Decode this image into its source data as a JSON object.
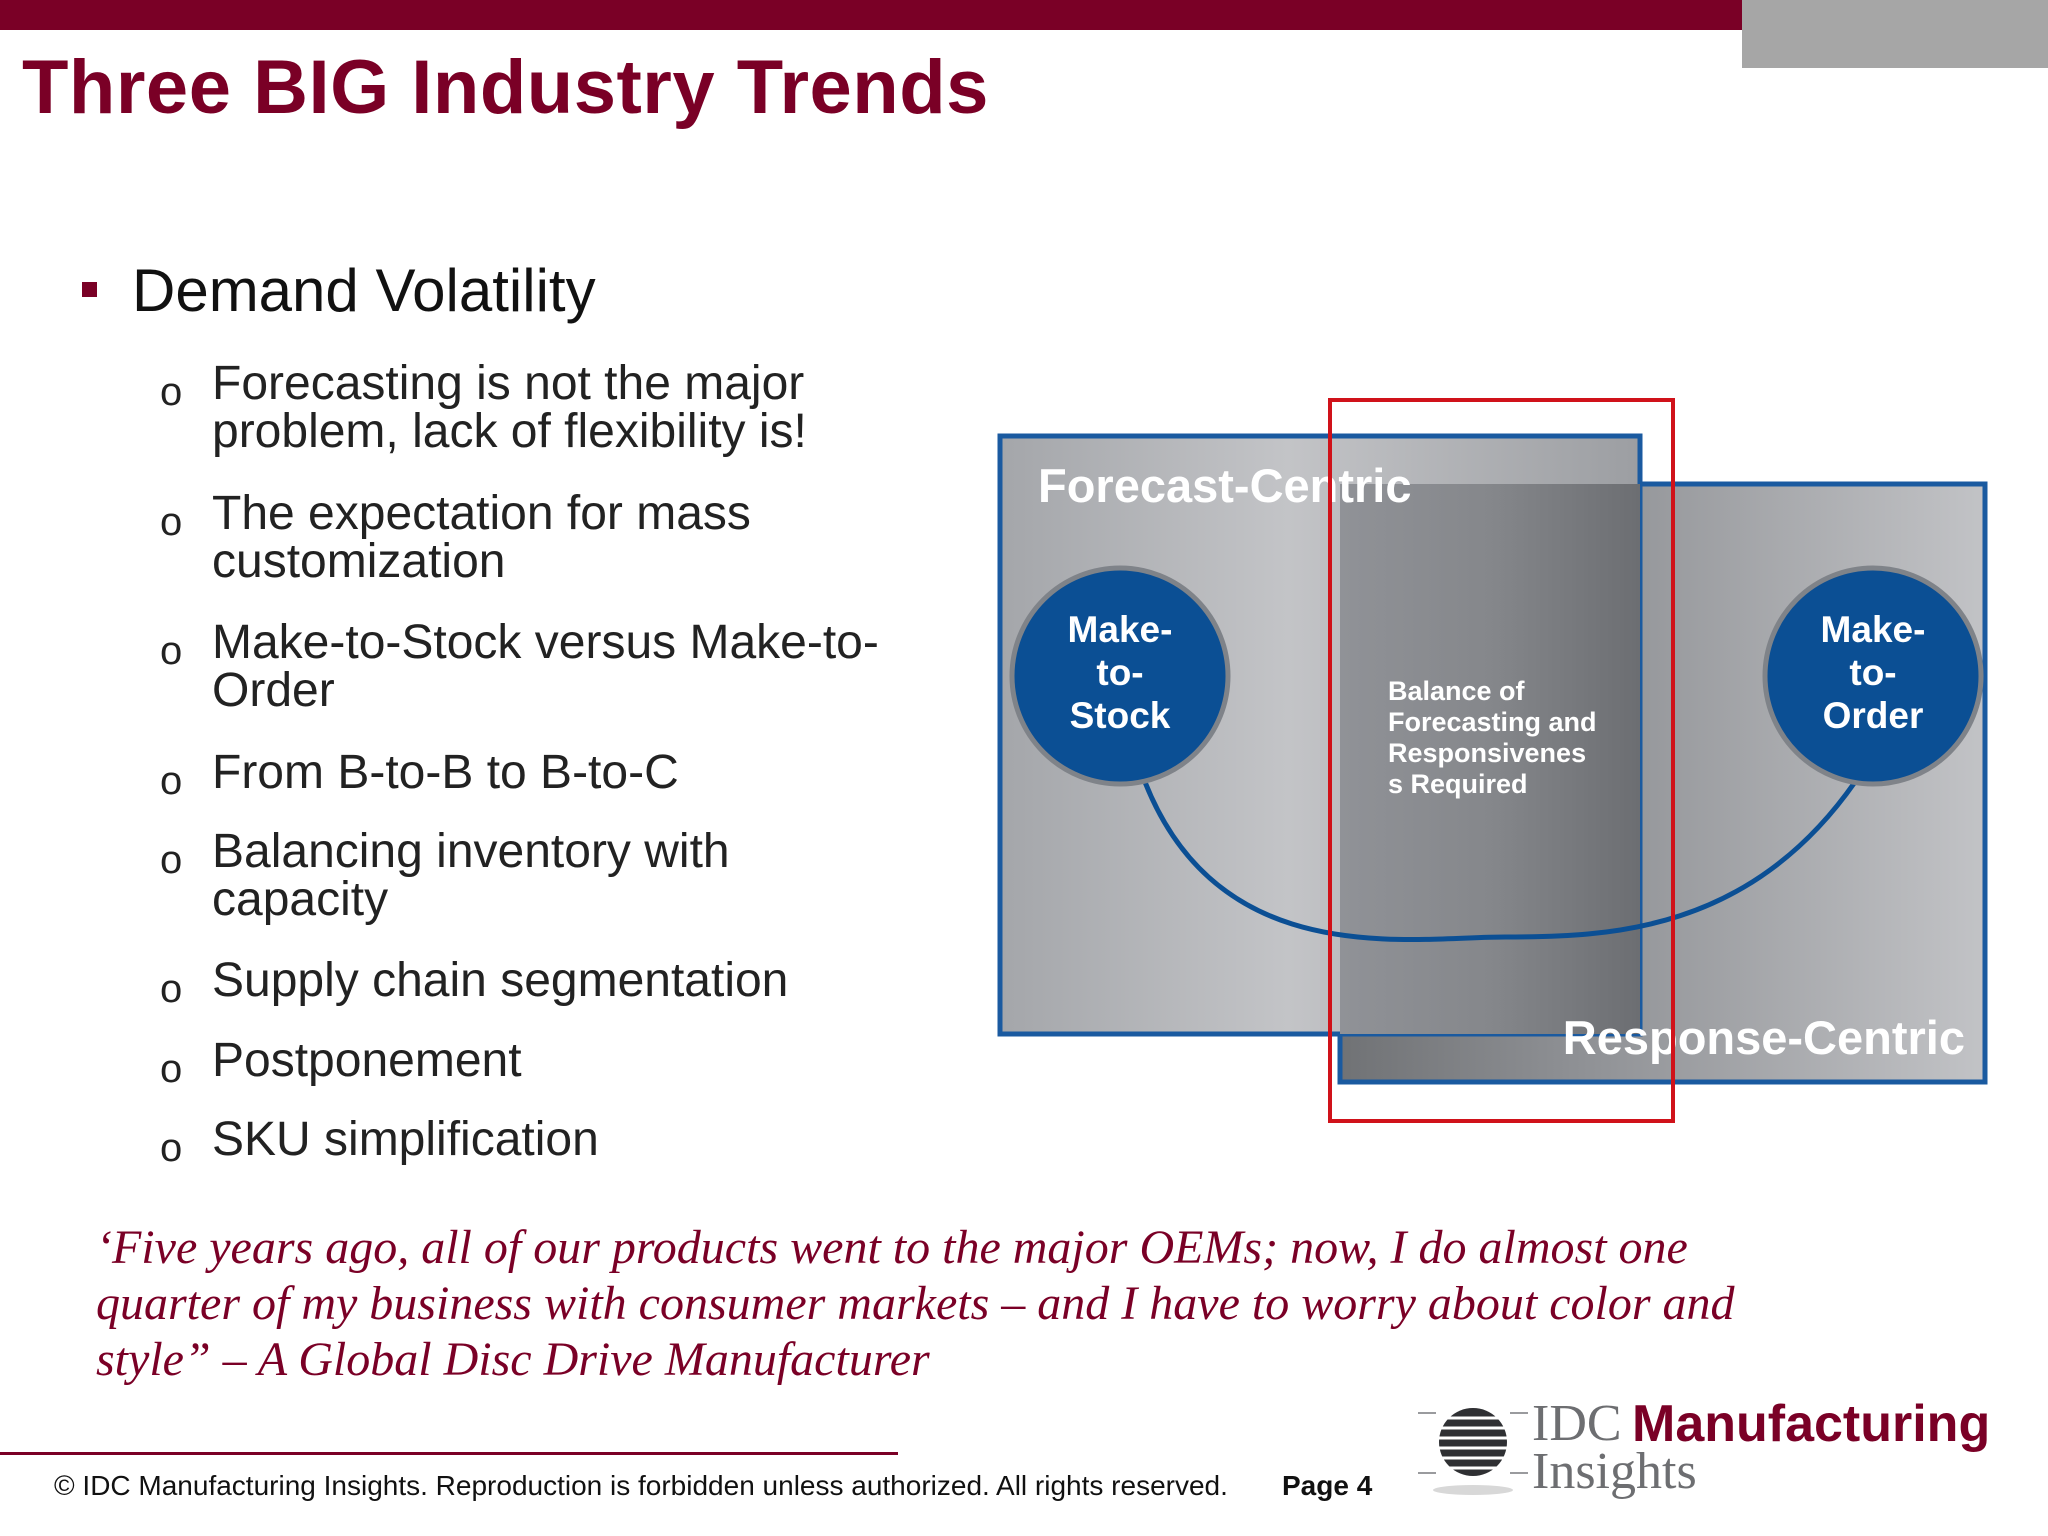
{
  "slide": {
    "title": "Three BIG Industry Trends",
    "main_bullet": "Demand Volatility",
    "sub_bullets": [
      {
        "marker": "o",
        "line1": "Forecasting is not the major",
        "line2": "problem, lack of flexibility is!"
      },
      {
        "marker": "o",
        "line1": "The expectation for mass",
        "line2": "customization"
      },
      {
        "marker": "o",
        "line1": "Make-to-Stock versus Make-to-",
        "line2": "Order"
      },
      {
        "marker": "o",
        "line1": "From B-to-B to B-to-C",
        "line2": ""
      },
      {
        "marker": "o",
        "line1": "Balancing inventory with",
        "line2": "capacity"
      },
      {
        "marker": "o",
        "line1": "Supply chain segmentation",
        "line2": ""
      },
      {
        "marker": "o",
        "line1": "Postponement",
        "line2": ""
      },
      {
        "marker": "o",
        "line1": "SKU simplification",
        "line2": ""
      }
    ],
    "quote_lines": [
      "‘Five years ago, all of our products went to the major OEMs; now, I do almost one",
      "quarter of my business with consumer markets – and I have to worry about color and",
      "style” – A Global Disc Drive Manufacturer"
    ]
  },
  "diagram": {
    "forecast_label": "Forecast-Centric",
    "response_label": "Response-Centric",
    "left_circle": [
      "Make-",
      "to-",
      "Stock"
    ],
    "right_circle": [
      "Make-",
      "to-",
      "Order"
    ],
    "center_text": [
      "Balance of",
      "Forecasting and",
      "Responsivenes",
      "s Required"
    ],
    "colors": {
      "circle_fill": "#0b4f94",
      "border": "#1a5aa0",
      "highlight": "#d0121a"
    }
  },
  "footer": {
    "copyright": "© IDC Manufacturing Insights. Reproduction is forbidden unless authorized. All rights reserved.",
    "page": "Page 4"
  },
  "logo": {
    "idc": "IDC",
    "manufacturing": "Manufacturing",
    "insights": "Insights"
  },
  "theme": {
    "accent": "#7a0026",
    "gray": "#a6a6a6"
  }
}
